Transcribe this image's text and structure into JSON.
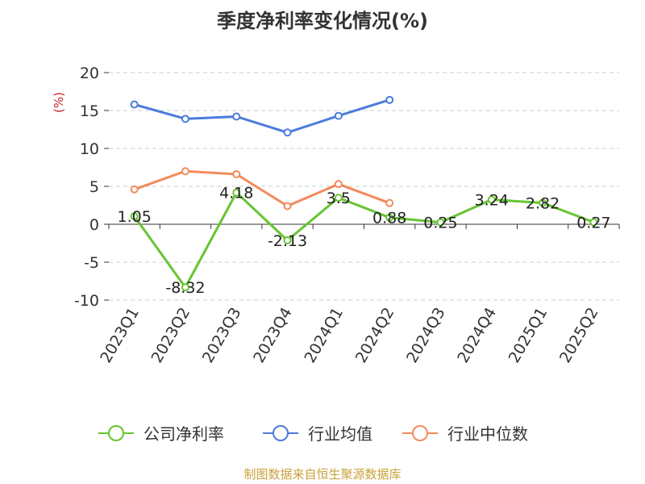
{
  "chart_data": {
    "type": "line",
    "title": "季度净利率变化情况(%)",
    "ylabel": "(%)",
    "xlabel": "",
    "categories": [
      "2023Q1",
      "2023Q2",
      "2023Q3",
      "2023Q4",
      "2024Q1",
      "2024Q2",
      "2024Q3",
      "2024Q4",
      "2025Q1",
      "2025Q2"
    ],
    "ylim": [
      -10,
      20
    ],
    "yticks": [
      -10,
      -5,
      0,
      5,
      10,
      15,
      20
    ],
    "grid": true,
    "legend_position": "bottom",
    "series": [
      {
        "name": "公司净利率",
        "color": "#66c531",
        "show_labels": true,
        "values": [
          1.05,
          -8.32,
          4.18,
          -2.13,
          3.5,
          0.88,
          0.25,
          3.24,
          2.82,
          0.27
        ]
      },
      {
        "name": "行业均值",
        "color": "#4b7bdc",
        "show_labels": false,
        "values": [
          15.8,
          13.9,
          14.2,
          12.1,
          14.3,
          16.4,
          null,
          null,
          null,
          null
        ]
      },
      {
        "name": "行业中位数",
        "color": "#f28b5c",
        "show_labels": false,
        "values": [
          4.6,
          7.0,
          6.6,
          2.4,
          5.3,
          2.8,
          null,
          null,
          null,
          null
        ]
      }
    ]
  },
  "footer": {
    "source": "制图数据来自恒生聚源数据库"
  }
}
